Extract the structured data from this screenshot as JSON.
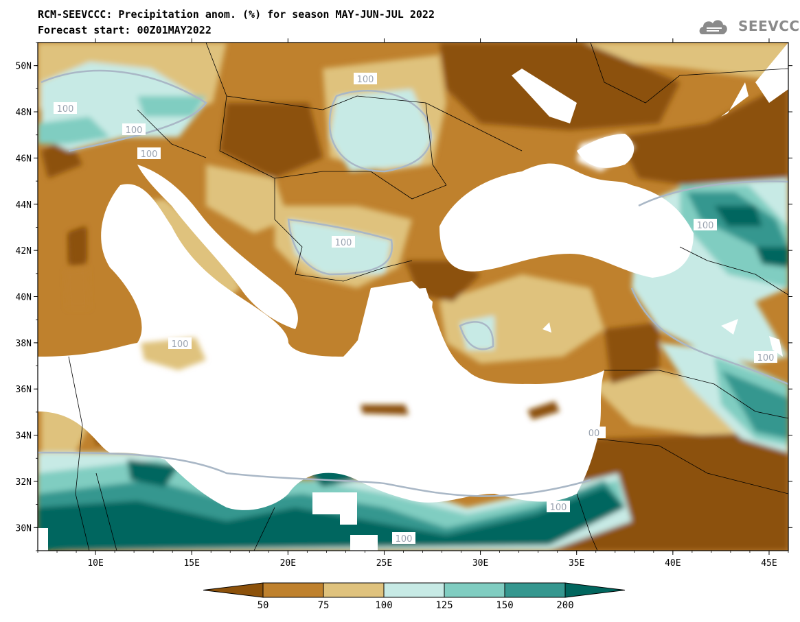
{
  "title_line1": "RCM-SEEVCCC: Precipitation anom. (%) for season MAY-JUN-JUL 2022",
  "title_line2": "Forecast start: 00Z01MAY2022",
  "logo_text": "SEEVCCC",
  "logo_icon": "cloud-icon",
  "map": {
    "lon_range": [
      7,
      46
    ],
    "lat_range": [
      29,
      51
    ],
    "lat_ticks": [
      "50N",
      "48N",
      "46N",
      "44N",
      "42N",
      "40N",
      "38N",
      "36N",
      "34N",
      "32N",
      "30N"
    ],
    "lon_ticks": [
      "10E",
      "15E",
      "20E",
      "25E",
      "30E",
      "35E",
      "40E",
      "45E"
    ],
    "contour_labels": [
      "100",
      "100",
      "100",
      "100",
      "100",
      "100",
      "100",
      "100",
      "100",
      "100",
      "00"
    ],
    "sea_color": "#ffffff"
  },
  "colorbar": {
    "labels": [
      "50",
      "75",
      "100",
      "125",
      "150",
      "200"
    ],
    "colors": [
      "#8c510a",
      "#bf812d",
      "#dfc27d",
      "#c7eae5",
      "#80cdc1",
      "#35978f",
      "#01665e"
    ]
  }
}
